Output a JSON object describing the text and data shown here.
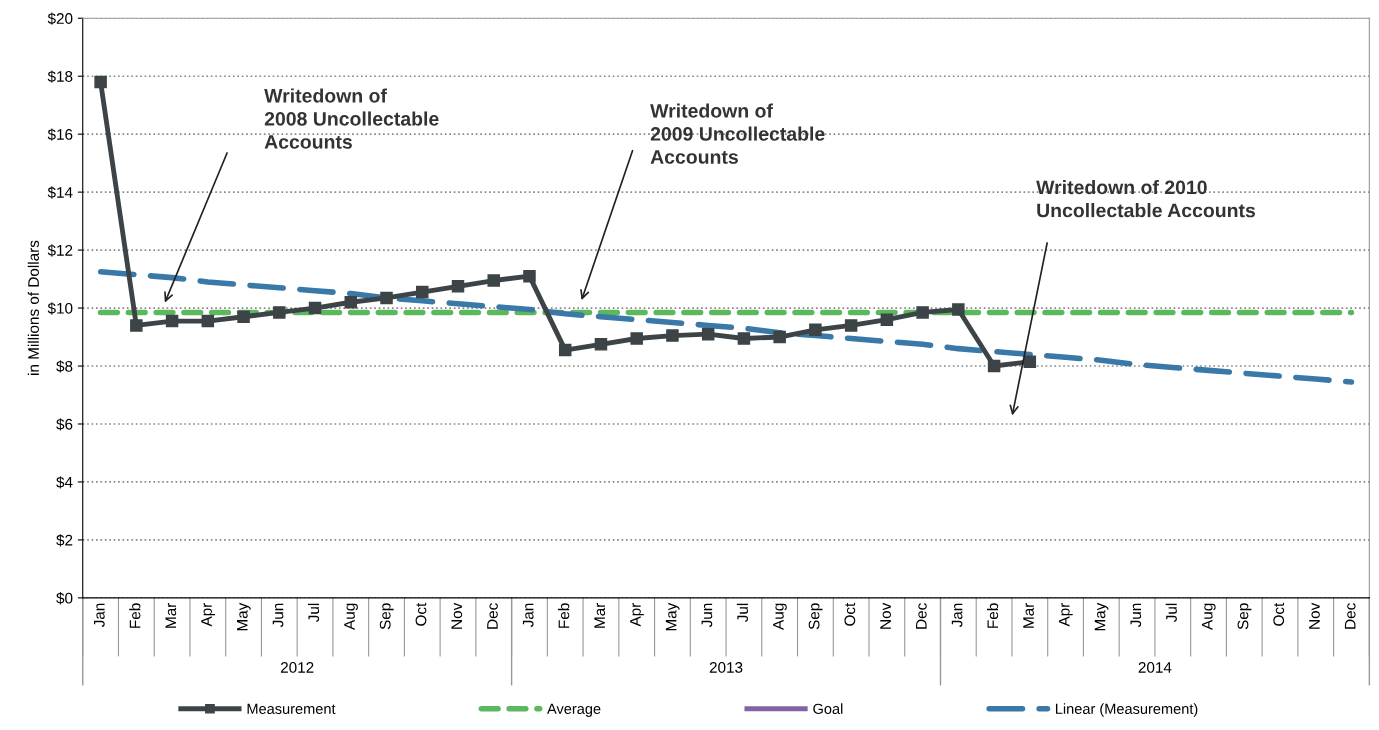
{
  "chart_data": {
    "type": "line",
    "ylabel": "in Millions of Dollars",
    "categories": [
      "Jan",
      "Feb",
      "Mar",
      "Apr",
      "May",
      "Jun",
      "Jul",
      "Aug",
      "Sep",
      "Oct",
      "Nov",
      "Dec",
      "Jan",
      "Feb",
      "Mar",
      "Apr",
      "May",
      "Jun",
      "Jul",
      "Aug",
      "Sep",
      "Oct",
      "Nov",
      "Dec",
      "Jan",
      "Feb",
      "Mar",
      "Apr",
      "May",
      "Jun",
      "Jul",
      "Aug",
      "Sep",
      "Oct",
      "Nov",
      "Dec"
    ],
    "series": [
      {
        "name": "Measurement",
        "color": "#3d4447",
        "marker": "square",
        "line_style": "solid",
        "values": [
          17.8,
          9.4,
          9.55,
          9.55,
          9.7,
          9.85,
          10.0,
          10.2,
          10.35,
          10.55,
          10.75,
          10.95,
          11.1,
          8.55,
          8.75,
          8.95,
          9.05,
          9.1,
          8.95,
          9.0,
          9.25,
          9.4,
          9.6,
          9.85,
          9.95,
          8.0,
          8.15,
          null,
          null,
          null,
          null,
          null,
          null,
          null,
          null,
          null
        ]
      },
      {
        "name": "Average",
        "color": "#5cb85c",
        "marker": "none",
        "line_style": "dashed",
        "values": [
          9.85,
          9.85,
          9.85,
          9.85,
          9.85,
          9.85,
          9.85,
          9.85,
          9.85,
          9.85,
          9.85,
          9.85,
          9.85,
          9.85,
          9.85,
          9.85,
          9.85,
          9.85,
          9.85,
          9.85,
          9.85,
          9.85,
          9.85,
          9.85,
          9.85,
          9.85,
          9.85,
          9.85,
          9.85,
          9.85,
          9.85,
          9.85,
          9.85,
          9.85,
          9.85,
          9.85
        ]
      },
      {
        "name": "Goal",
        "color": "#8064a2",
        "marker": "none",
        "line_style": "solid",
        "values": [
          null,
          null,
          null,
          null,
          null,
          null,
          null,
          null,
          null,
          null,
          null,
          null,
          null,
          null,
          null,
          null,
          null,
          null,
          null,
          null,
          null,
          null,
          null,
          null,
          null,
          null,
          null,
          null,
          null,
          null,
          null,
          null,
          null,
          null,
          null,
          null
        ]
      },
      {
        "name": "Linear (Measurement)",
        "color": "#3a78a8",
        "marker": "none",
        "line_style": "longdash",
        "values": [
          11.25,
          11.15,
          11.05,
          10.9,
          10.8,
          10.7,
          10.6,
          10.5,
          10.35,
          10.25,
          10.15,
          10.05,
          9.95,
          9.8,
          9.7,
          9.6,
          9.5,
          9.4,
          9.3,
          9.15,
          9.05,
          8.95,
          8.85,
          8.75,
          8.6,
          8.5,
          8.4,
          8.3,
          8.2,
          8.05,
          7.95,
          7.85,
          7.75,
          7.65,
          7.55,
          7.45
        ]
      }
    ],
    "ylim": [
      0,
      20
    ],
    "yticks": [
      {
        "value": 0,
        "label": "$0"
      },
      {
        "value": 2,
        "label": "$2"
      },
      {
        "value": 4,
        "label": "$4"
      },
      {
        "value": 6,
        "label": "$6"
      },
      {
        "value": 8,
        "label": "$8"
      },
      {
        "value": 10,
        "label": "$10"
      },
      {
        "value": 12,
        "label": "$12"
      },
      {
        "value": 14,
        "label": "$14"
      },
      {
        "value": 16,
        "label": "$16"
      },
      {
        "value": 18,
        "label": "$18"
      },
      {
        "value": 20,
        "label": "$20"
      }
    ],
    "grid": "y",
    "legend": "bottom",
    "annotations": [
      "Writedown of\n2008 Uncollectable\nAccounts",
      "Writedown of\n2009 Uncollectable\nAccounts",
      "Writedown of 2010\nUncollectable Accounts",
      "2012",
      "2013",
      "2014"
    ]
  }
}
